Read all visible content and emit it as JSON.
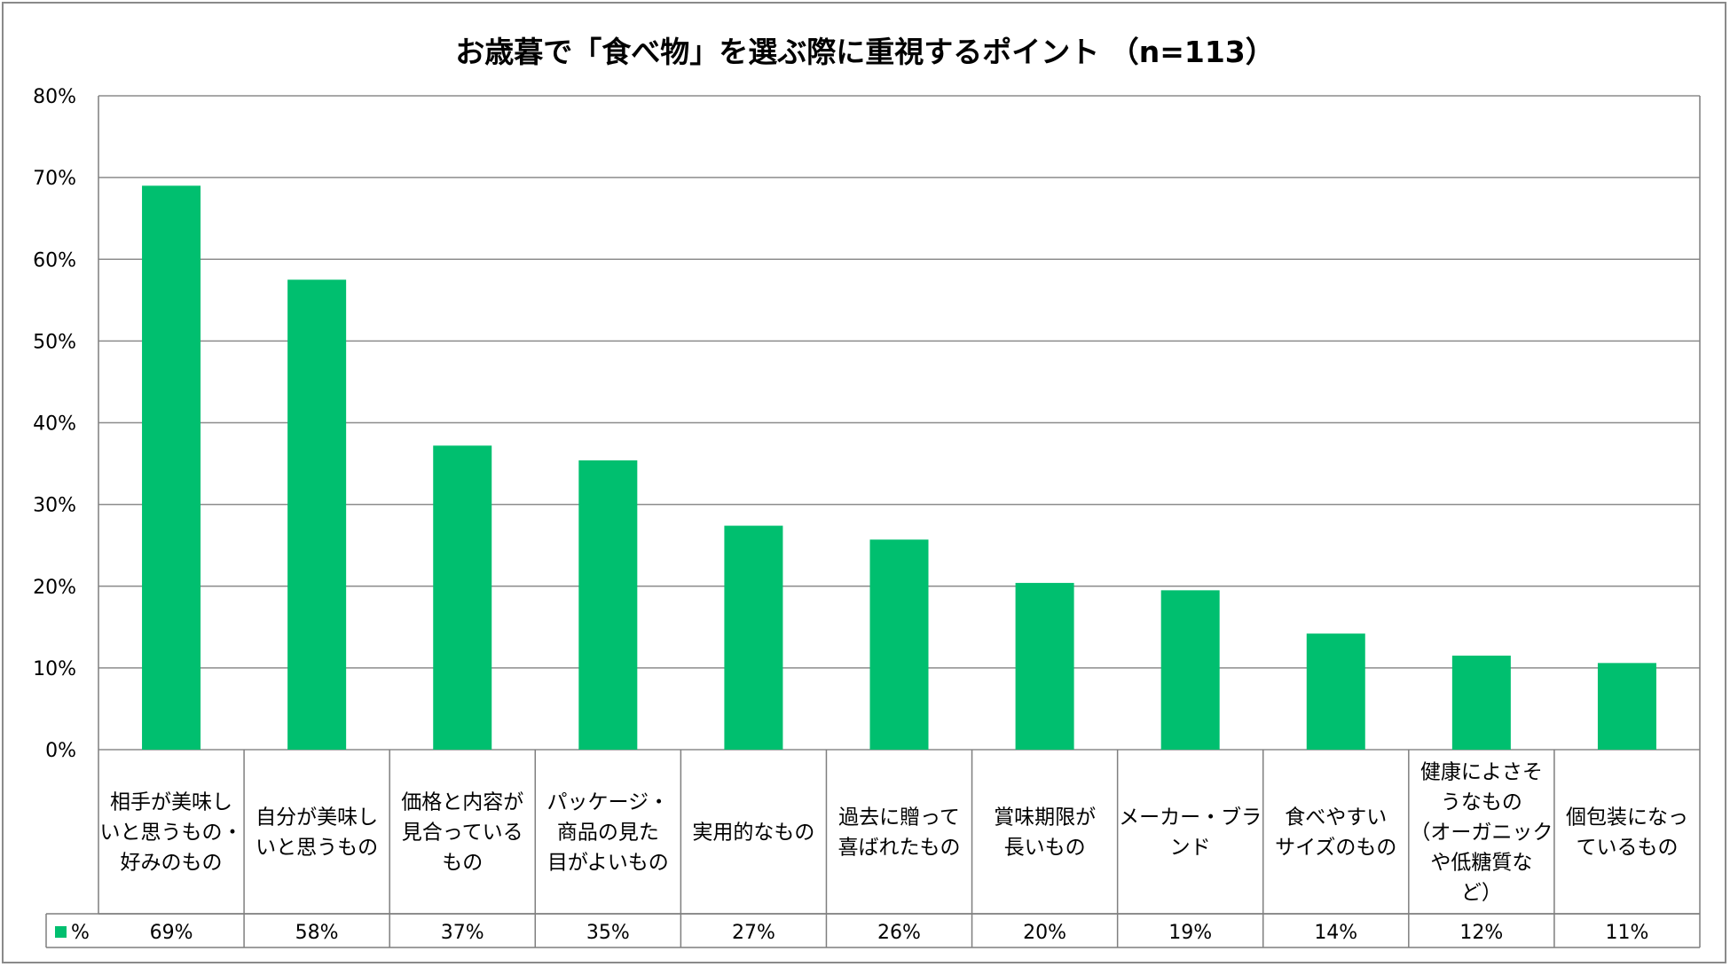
{
  "chart_data": {
    "type": "bar",
    "title": "お歳暮で「食べ物」を選ぶ際に重視するポイント （n=113）",
    "categories": [
      [
        "相手が美味し",
        "いと思うもの・",
        "好みのもの"
      ],
      [
        "自分が美味し",
        "いと思うもの"
      ],
      [
        "価格と内容が",
        "見合っている",
        "もの"
      ],
      [
        "パッケージ・",
        "商品の見た",
        "目がよいもの"
      ],
      [
        "実用的なもの"
      ],
      [
        "過去に贈って",
        "喜ばれたもの"
      ],
      [
        "賞味期限が",
        "長いもの"
      ],
      [
        "メーカー・ブラ",
        "ンド"
      ],
      [
        "食べやすい",
        "サイズのもの"
      ],
      [
        "健康によさそ",
        "うなもの",
        "（オーガニック",
        "や低糖質な",
        "ど）"
      ],
      [
        "個包装になっ",
        "ているもの"
      ]
    ],
    "series": [
      {
        "name": "%",
        "values": [
          69,
          57.5,
          37.2,
          35.4,
          27.4,
          25.7,
          20.4,
          19.5,
          14.2,
          11.5,
          10.6
        ],
        "labels": [
          "69%",
          "58%",
          "37%",
          "35%",
          "27%",
          "26%",
          "20%",
          "19%",
          "14%",
          "12%",
          "11%"
        ],
        "color": "#00bf6f"
      }
    ],
    "yticks": [
      "0%",
      "10%",
      "20%",
      "30%",
      "40%",
      "50%",
      "60%",
      "70%",
      "80%"
    ],
    "ylim": [
      0,
      80
    ],
    "grid": true,
    "legend": "data-table-left",
    "colors": {
      "bar": "#00bf6f",
      "grid": "#8c8c8c",
      "axis": "#7f7f7f"
    }
  }
}
